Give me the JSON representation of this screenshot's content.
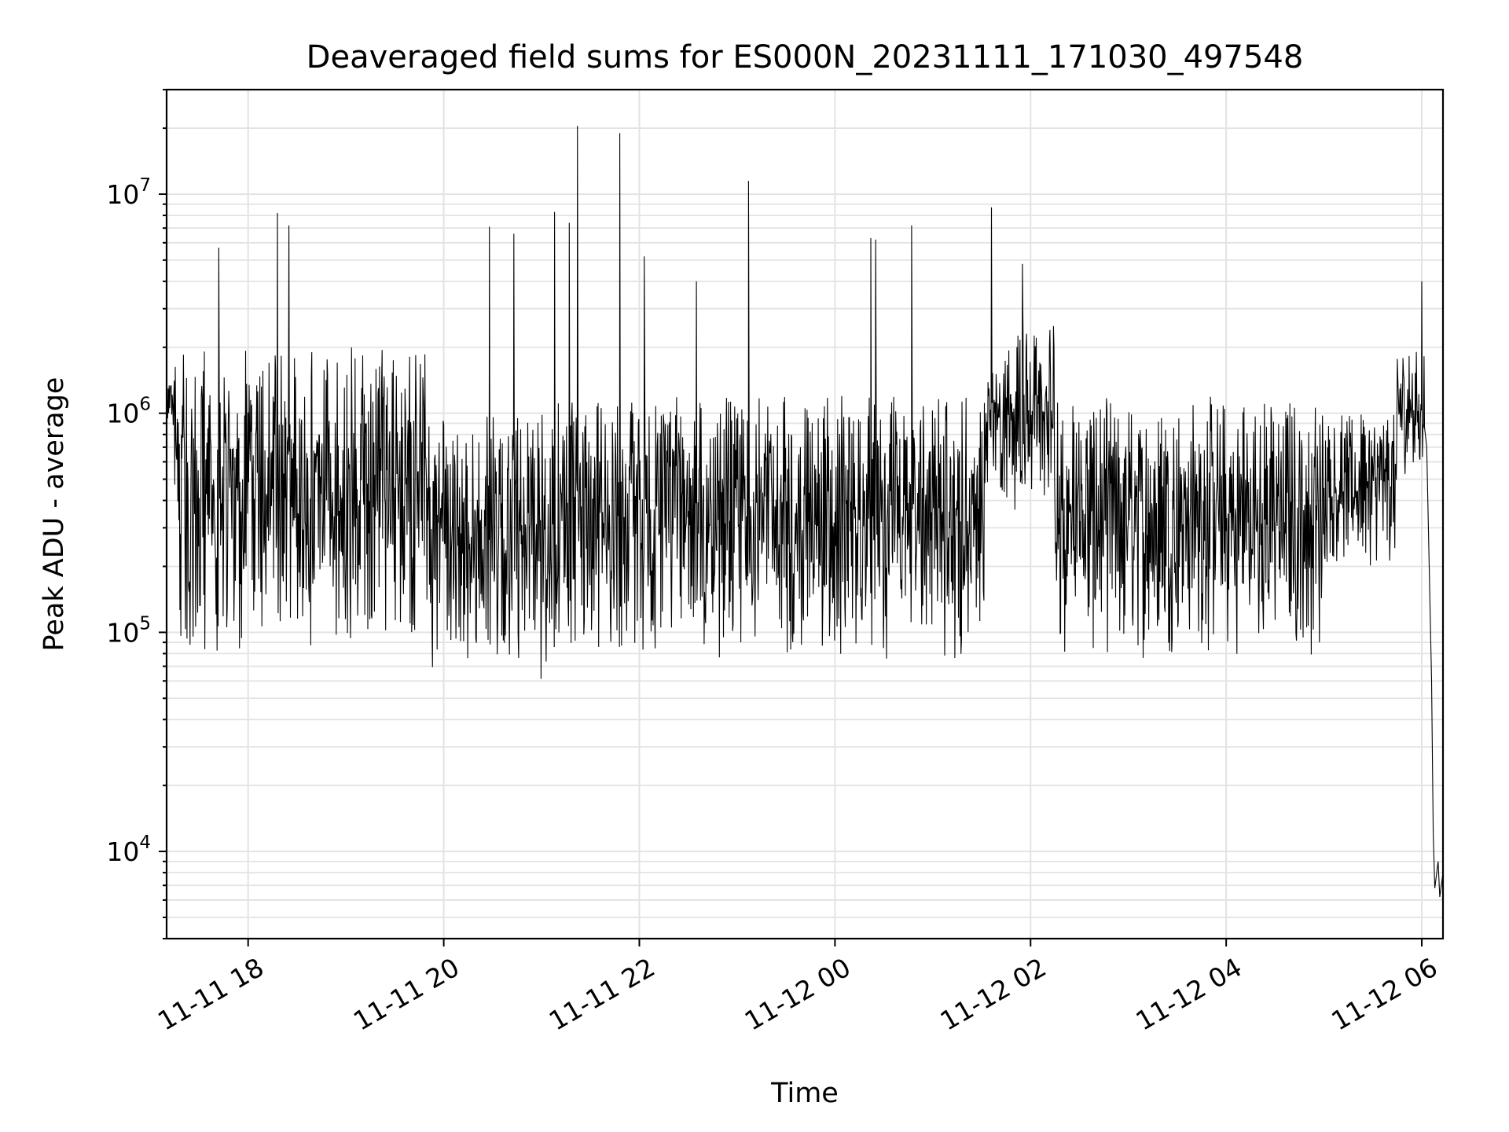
{
  "chart_data": {
    "type": "line",
    "title": "Deaveraged field sums for ES000N_20231111_171030_497548",
    "xlabel": "Time",
    "ylabel": "Peak ADU - average",
    "yscale": "log",
    "ylim": [
      4000,
      30000000
    ],
    "xlim": [
      "2023-11-11 17:10",
      "2023-11-12 06:13"
    ],
    "grid": true,
    "grid_minor": true,
    "x_tick_labels": [
      "11-11 18",
      "11-11 20",
      "11-11 22",
      "11-12 00",
      "11-12 02",
      "11-12 04",
      "11-12 06"
    ],
    "x_tick_values": [
      "2023-11-11 18:00",
      "2023-11-11 20:00",
      "2023-11-11 22:00",
      "2023-11-12 00:00",
      "2023-11-12 02:00",
      "2023-11-12 04:00",
      "2023-11-12 06:00"
    ],
    "y_tick_labels": [
      {
        "base": "10",
        "exp": "4",
        "value": 10000
      },
      {
        "base": "10",
        "exp": "5",
        "value": 100000
      },
      {
        "base": "10",
        "exp": "6",
        "value": 1000000
      },
      {
        "base": "10",
        "exp": "7",
        "value": 10000000
      }
    ],
    "series": [
      {
        "color": "#000000",
        "note_segments": [
          {
            "t_start": "2023-11-11 17:10",
            "t_end": "2023-11-11 17:15",
            "low": 800000,
            "high": 1500000
          },
          {
            "t_start": "2023-11-11 17:15",
            "t_end": "2023-11-11 19:50",
            "low": 80000,
            "high": 2000000
          },
          {
            "t_start": "2023-11-11 19:50",
            "t_end": "2023-11-11 21:10",
            "low": 60000,
            "high": 1000000
          },
          {
            "t_start": "2023-11-11 21:10",
            "t_end": "2023-11-12 01:32",
            "low": 75000,
            "high": 1200000
          },
          {
            "t_start": "2023-11-12 01:32",
            "t_end": "2023-11-12 02:15",
            "low": 350000,
            "high": 2500000
          },
          {
            "t_start": "2023-11-12 02:15",
            "t_end": "2023-11-12 05:00",
            "low": 75000,
            "high": 1200000
          },
          {
            "t_start": "2023-11-12 05:00",
            "t_end": "2023-11-12 05:45",
            "low": 200000,
            "high": 1000000
          },
          {
            "t_start": "2023-11-12 05:45",
            "t_end": "2023-11-12 06:02",
            "low": 500000,
            "high": 2000000
          }
        ],
        "spikes": [
          {
            "t": "2023-11-11 17:42",
            "value": 5700000
          },
          {
            "t": "2023-11-11 18:18",
            "value": 8200000
          },
          {
            "t": "2023-11-11 18:25",
            "value": 7200000
          },
          {
            "t": "2023-11-11 20:28",
            "value": 7100000
          },
          {
            "t": "2023-11-11 20:43",
            "value": 6600000
          },
          {
            "t": "2023-11-11 21:08",
            "value": 8300000
          },
          {
            "t": "2023-11-11 21:17",
            "value": 7400000
          },
          {
            "t": "2023-11-11 21:22",
            "value": 20500000
          },
          {
            "t": "2023-11-11 21:48",
            "value": 19000000
          },
          {
            "t": "2023-11-11 22:03",
            "value": 5200000
          },
          {
            "t": "2023-11-11 22:35",
            "value": 4000000
          },
          {
            "t": "2023-11-11 23:07",
            "value": 11500000
          },
          {
            "t": "2023-11-12 00:22",
            "value": 6300000
          },
          {
            "t": "2023-11-12 00:25",
            "value": 6200000
          },
          {
            "t": "2023-11-12 00:47",
            "value": 7200000
          },
          {
            "t": "2023-11-12 01:36",
            "value": 8700000
          },
          {
            "t": "2023-11-12 01:55",
            "value": 4800000
          },
          {
            "t": "2023-11-12 06:00",
            "value": 4000000
          }
        ],
        "tail": [
          {
            "t": "2023-11-12 06:03",
            "value": 700000
          },
          {
            "t": "2023-11-12 06:06",
            "value": 60000
          },
          {
            "t": "2023-11-12 06:07",
            "value": 12000
          },
          {
            "t": "2023-11-12 06:08",
            "value": 6800
          },
          {
            "t": "2023-11-12 06:10",
            "value": 9000
          },
          {
            "t": "2023-11-12 06:11",
            "value": 6200
          },
          {
            "t": "2023-11-12 06:13",
            "value": 8000
          }
        ]
      }
    ]
  }
}
